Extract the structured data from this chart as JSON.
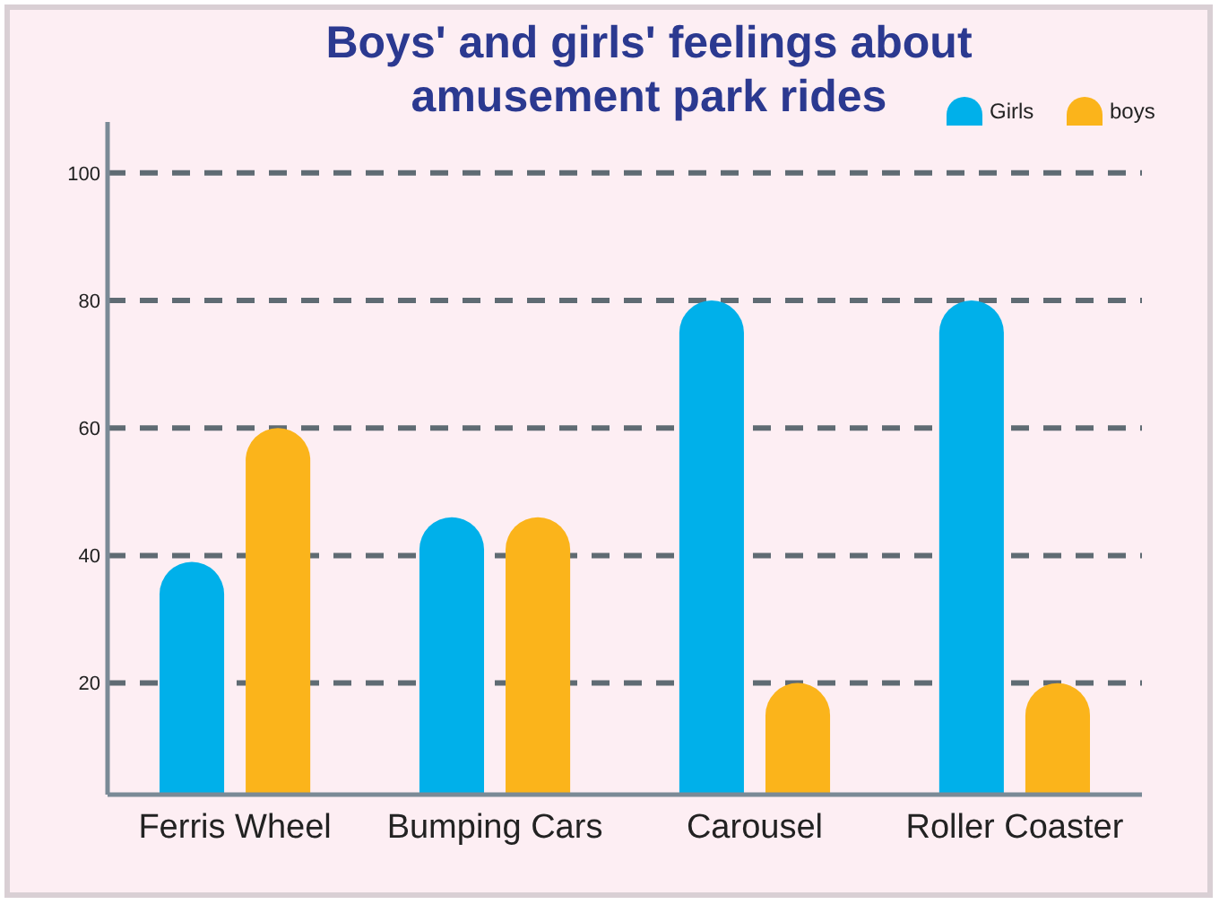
{
  "chart_data": {
    "type": "bar",
    "title": "Boys' and girls' feelings about\namusement park rides",
    "categories": [
      "Ferris Wheel",
      "Bumping Cars",
      "Carousel",
      "Roller Coaster"
    ],
    "series": [
      {
        "name": "Girls",
        "color": "#00b0ea",
        "values": [
          39,
          46,
          80,
          80
        ]
      },
      {
        "name": "boys",
        "color": "#fbb41b",
        "values": [
          60,
          46,
          20,
          20
        ]
      }
    ],
    "ylim": [
      2.5,
      108
    ],
    "yticks": [
      20,
      40,
      60,
      80,
      100
    ],
    "grid": "y",
    "legend": "top right"
  }
}
